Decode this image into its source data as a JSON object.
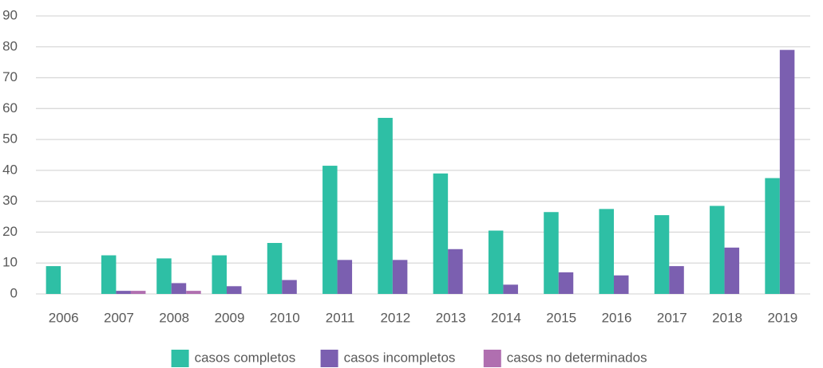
{
  "chart_data": {
    "type": "bar",
    "categories": [
      "2006",
      "2007",
      "2008",
      "2009",
      "2010",
      "2011",
      "2012",
      "2013",
      "2014",
      "2015",
      "2016",
      "2017",
      "2018",
      "2019"
    ],
    "series": [
      {
        "name": "casos completos",
        "color": "#2ebfa5",
        "values": [
          9,
          12.5,
          11.5,
          12.5,
          16.5,
          41.5,
          57,
          39,
          20.5,
          26.5,
          27.5,
          25.5,
          28.5,
          37.5
        ]
      },
      {
        "name": "casos incompletos",
        "color": "#7b5fb0",
        "values": [
          0,
          1,
          3.5,
          2.5,
          4.5,
          11,
          11,
          14.5,
          3,
          7,
          6,
          9,
          15,
          79
        ]
      },
      {
        "name": "casos no determinados",
        "color": "#b06fb0",
        "values": [
          0,
          1,
          1,
          0,
          0,
          0,
          0,
          0,
          0,
          0,
          0,
          0,
          0,
          0
        ]
      }
    ],
    "ylim": [
      0,
      90
    ],
    "yticks": [
      0,
      10,
      20,
      30,
      40,
      50,
      60,
      70,
      80,
      90
    ],
    "grid": true,
    "legend": "bottom"
  }
}
